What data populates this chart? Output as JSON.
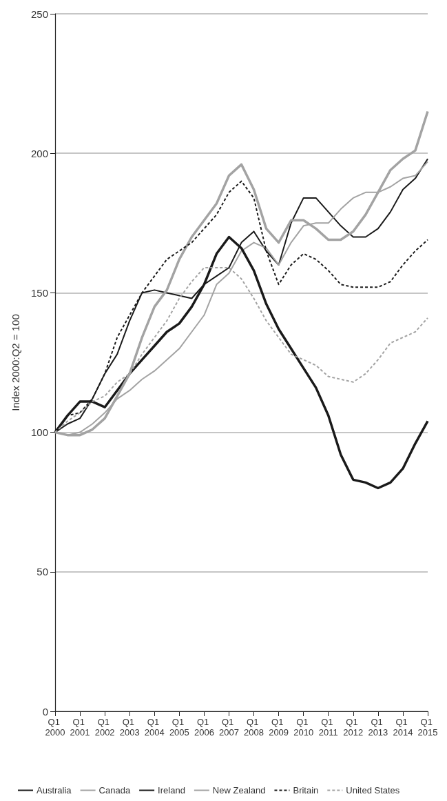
{
  "chart_data": {
    "type": "line",
    "ylabel": "Index 2000:Q2 = 100",
    "categories": [
      "Q1 2000",
      null,
      "Q1 2001",
      null,
      "Q1 2002",
      null,
      "Q1 2003",
      null,
      "Q1 2004",
      null,
      "Q1 2005",
      null,
      "Q1 2006",
      null,
      "Q1 2007",
      null,
      "Q1 2008",
      null,
      "Q1 2009",
      null,
      "Q1 2010",
      null,
      "Q1 2011",
      null,
      "Q1 2012",
      null,
      "Q1 2013",
      null,
      "Q1 2014",
      null,
      "Q1 2015"
    ],
    "series": [
      {
        "name": "Australia",
        "color": "#1a1a1a",
        "line_style": "solid",
        "values": [
          100,
          103,
          105,
          112,
          121,
          128,
          140,
          150,
          151,
          150,
          149,
          148,
          153,
          156,
          159,
          168,
          172,
          165,
          160,
          175,
          184,
          184,
          179,
          174,
          170,
          170,
          173,
          179,
          187,
          191,
          198
        ]
      },
      {
        "name": "Canada",
        "color": "#a3a3a3",
        "line_style": "solid",
        "values": [
          100,
          99,
          100,
          103,
          107,
          112,
          115,
          119,
          122,
          126,
          130,
          136,
          142,
          153,
          157,
          165,
          168,
          166,
          160,
          168,
          174,
          175,
          175,
          180,
          184,
          186,
          186,
          188,
          191,
          192,
          197
        ]
      },
      {
        "name": "Ireland",
        "color": "#1a1a1a",
        "line_style": "solid",
        "values": [
          100,
          106,
          111,
          111,
          109,
          115,
          121,
          126,
          131,
          136,
          139,
          145,
          153,
          164,
          170,
          166,
          158,
          146,
          137,
          130,
          123,
          116,
          106,
          92,
          83,
          82,
          80,
          82,
          87,
          96,
          104
        ]
      },
      {
        "name": "New Zealand",
        "color": "#a3a3a3",
        "line_style": "solid",
        "values": [
          100,
          99,
          99,
          101,
          105,
          113,
          121,
          134,
          145,
          151,
          162,
          170,
          176,
          182,
          192,
          196,
          187,
          173,
          168,
          176,
          176,
          173,
          169,
          169,
          172,
          178,
          186,
          194,
          198,
          201,
          215
        ]
      },
      {
        "name": "Britain",
        "color": "#1a1a1a",
        "line_style": "dashed",
        "values": [
          100,
          106,
          107,
          112,
          121,
          134,
          142,
          150,
          156,
          162,
          165,
          168,
          173,
          178,
          186,
          190,
          184,
          165,
          153,
          160,
          164,
          162,
          158,
          153,
          152,
          152,
          152,
          154,
          160,
          165,
          169
        ]
      },
      {
        "name": "United States",
        "color": "#a3a3a3",
        "line_style": "dashed",
        "values": [
          100,
          104,
          107,
          111,
          113,
          118,
          121,
          128,
          134,
          140,
          148,
          154,
          159,
          159,
          159,
          155,
          148,
          140,
          134,
          128,
          126,
          124,
          120,
          119,
          118,
          121,
          126,
          132,
          134,
          136,
          141
        ]
      }
    ],
    "ylim": [
      0,
      250
    ],
    "yticks": [
      0,
      50,
      100,
      150,
      200,
      250
    ],
    "grid": "y",
    "legend": "bottom left",
    "marker": "none"
  }
}
